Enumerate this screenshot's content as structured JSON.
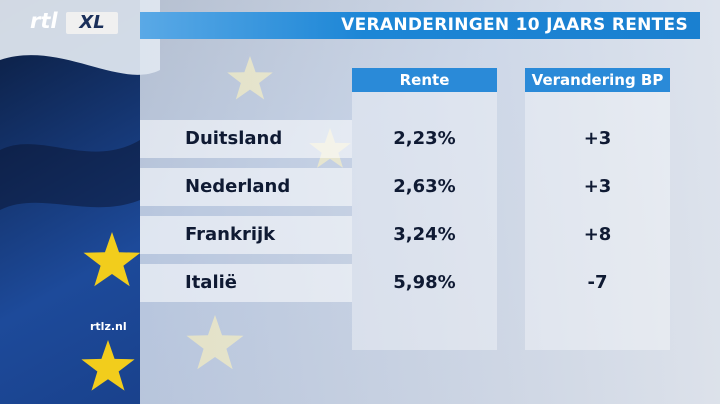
{
  "header": {
    "logo": {
      "left": "rtl",
      "right": "XL"
    },
    "title": "VERANDERINGEN 10 JAARS RENTES"
  },
  "table": {
    "columns": [
      "Rente",
      "Verandering BP"
    ],
    "rows": [
      [
        "Duitsland",
        "2,23%",
        "+3"
      ],
      [
        "Nederland",
        "2,63%",
        "+3"
      ],
      [
        "Frankrijk",
        "3,24%",
        "+8"
      ],
      [
        "Italië",
        "5,98%",
        "-7"
      ]
    ]
  },
  "footer": {
    "website": "rtlz.nl"
  }
}
